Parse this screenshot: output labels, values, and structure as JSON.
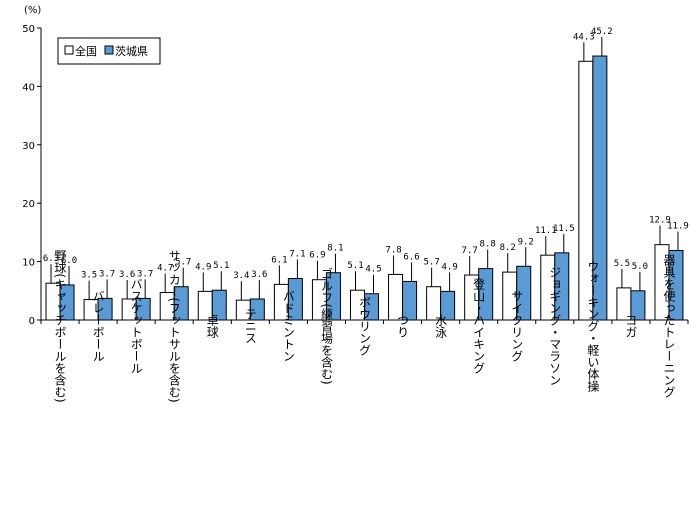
{
  "chart_data": {
    "type": "bar",
    "unit": "(%)",
    "ylim": [
      0,
      50
    ],
    "yticks": [
      "0",
      "10",
      "20",
      "30",
      "40",
      "50"
    ],
    "grid": false,
    "legend_position": "top-left",
    "categories": [
      "野球(キャッチボールを含む)",
      "バレーボール",
      "バスケットボール",
      "サッカー(フットサルを含む)",
      "卓球",
      "テニス",
      "バドミントン",
      "ゴルフ(練習場を含む)",
      "ボウリング",
      "つり",
      "水泳",
      "登山・ハイキング",
      "サイクリング",
      "ジョギング・マラソン",
      "ウォーキング・軽い体操",
      "ヨガ",
      "器具を使ったトレーニング"
    ],
    "series": [
      {
        "name": "全国",
        "color": "#ffffff",
        "values": [
          6.3,
          3.5,
          3.6,
          4.7,
          4.9,
          3.4,
          6.1,
          6.9,
          5.1,
          7.8,
          5.7,
          7.7,
          8.2,
          11.1,
          44.3,
          5.5,
          12.9
        ],
        "labels": [
          "6.3",
          "3.5",
          "3.6",
          "4.7",
          "4.9",
          "3.4",
          "6.1",
          "6.9",
          "5.1",
          "7.8",
          "5.7",
          "7.7",
          "8.2",
          "11.1",
          "44.3",
          "5.5",
          "12.9"
        ]
      },
      {
        "name": "茨城県",
        "color": "#5b9bd5",
        "values": [
          6.0,
          3.7,
          3.7,
          5.7,
          5.1,
          3.6,
          7.1,
          8.1,
          4.5,
          6.6,
          4.9,
          8.8,
          9.2,
          11.5,
          45.2,
          5.0,
          11.9
        ],
        "labels": [
          "6.0",
          "3.7",
          "3.7",
          "5.7",
          "5.1",
          "3.6",
          "7.1",
          "8.1",
          "4.5",
          "6.6",
          "4.9",
          "8.8",
          "9.2",
          "11.5",
          "45.2",
          "5.0",
          "11.9"
        ]
      }
    ]
  }
}
